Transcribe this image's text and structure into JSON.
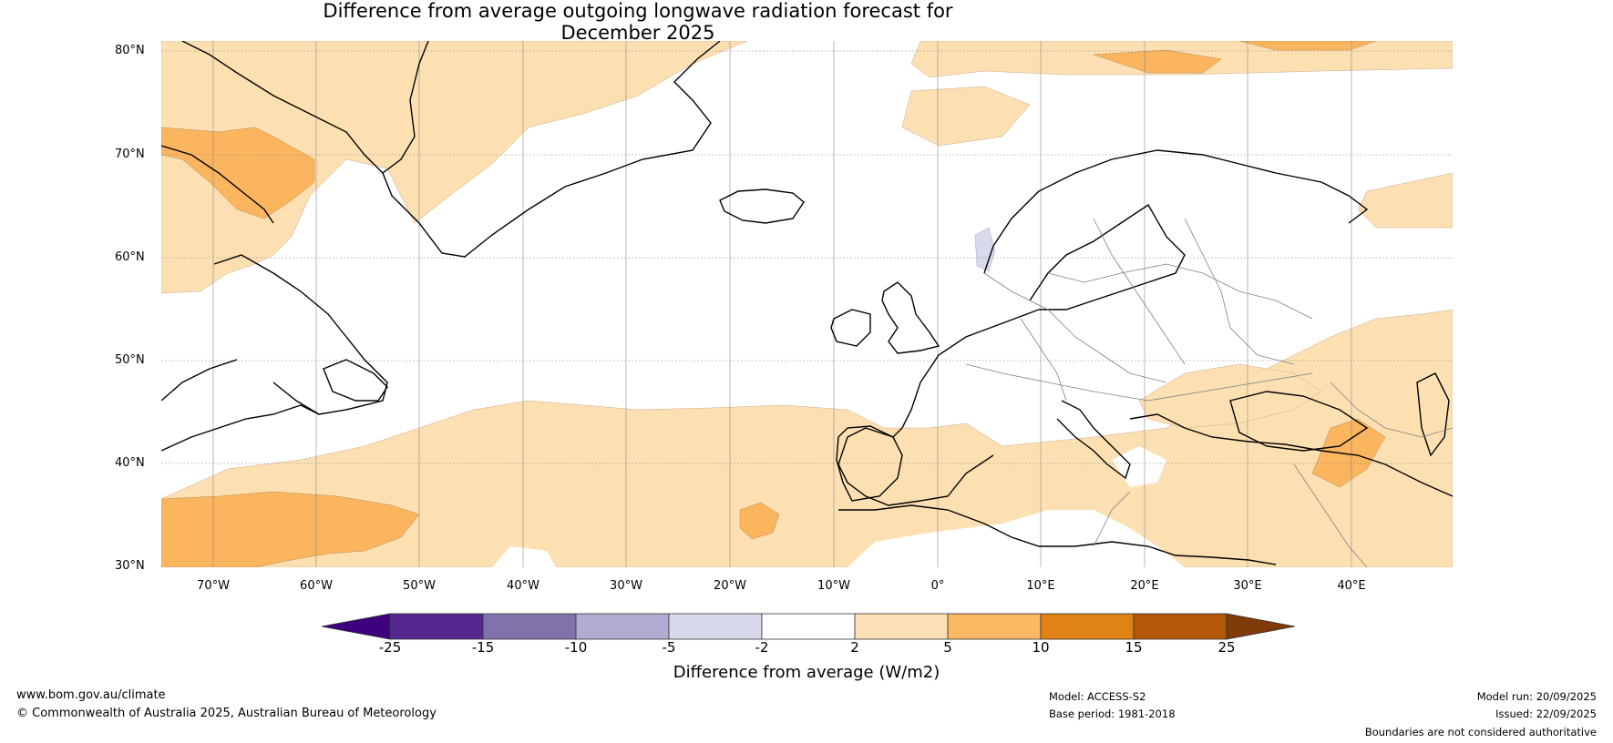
{
  "title": {
    "line1": "Difference from average outgoing longwave radiation forecast for",
    "line2": "December 2025"
  },
  "map": {
    "lat_labels": [
      "80°N",
      "70°N",
      "60°N",
      "50°N",
      "40°N",
      "30°N"
    ],
    "lon_labels": [
      "70°W",
      "60°W",
      "50°W",
      "40°W",
      "30°W",
      "20°W",
      "10°W",
      "0°",
      "10°E",
      "20°E",
      "30°E",
      "40°E"
    ],
    "colors": {
      "pos_2_5": "#fde0b2",
      "pos_5_10": "#fbb55f",
      "neg_5_2": "#d8d9eb",
      "coast": "#000000",
      "border": "#808080",
      "grid": "#888888"
    }
  },
  "colorbar": {
    "ticks": [
      "-25",
      "-15",
      "-10",
      "-5",
      "-2",
      "2",
      "5",
      "10",
      "15",
      "25"
    ],
    "colors": [
      "#3f007d",
      "#54278f",
      "#8073ac",
      "#b2abd2",
      "#d8daeb",
      "#ffffff",
      "#fee0b6",
      "#fdb863",
      "#e08214",
      "#b35806",
      "#7f3b08"
    ],
    "label": "Difference from average (W/m2)"
  },
  "footer": {
    "website": "www.bom.gov.au/climate",
    "copyright": "© Commonwealth of Australia 2025, Australian Bureau of Meteorology",
    "model": "Model: ACCESS-S2",
    "base_period": "Base period: 1981-2018",
    "model_run": "Model run: 20/09/2025",
    "issued": "Issued: 22/09/2025",
    "disclaimer": "Boundaries are not considered authoritative"
  }
}
